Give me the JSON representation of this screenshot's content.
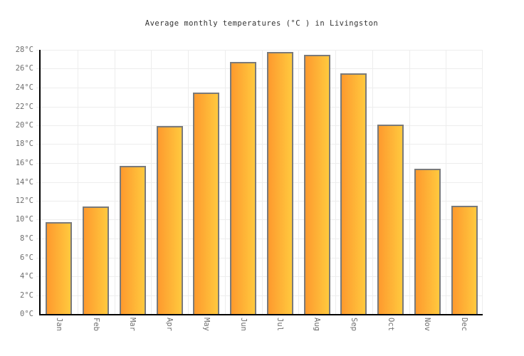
{
  "chart_data": {
    "type": "bar",
    "title": "Average monthly temperatures (°C ) in Livingston",
    "categories": [
      "Jan",
      "Feb",
      "Mar",
      "Apr",
      "May",
      "Jun",
      "Jul",
      "Aug",
      "Sep",
      "Oct",
      "Nov",
      "Dec"
    ],
    "values": [
      9.7,
      11.4,
      15.7,
      19.9,
      23.5,
      26.7,
      27.8,
      27.5,
      25.5,
      20.1,
      15.4,
      11.5
    ],
    "unit": "°C",
    "xlabel": "",
    "ylabel": "",
    "ylim": [
      0,
      28
    ],
    "ytick_step": 2,
    "ytick_labels": [
      "0°C",
      "2°C",
      "4°C",
      "6°C",
      "8°C",
      "10°C",
      "12°C",
      "14°C",
      "16°C",
      "18°C",
      "20°C",
      "22°C",
      "24°C",
      "26°C",
      "28°C"
    ],
    "grid": "both",
    "legend": "none",
    "colors": {
      "bar_gradient_left": "#FE9A2E",
      "bar_gradient_right": "#FFC93E",
      "bar_border": "#7A7A7A",
      "grid_line": "#EDEDED",
      "axis_line": "#000000",
      "tick_label": "#6E6E6E",
      "title": "#333333",
      "background": "#FFFFFF"
    }
  }
}
